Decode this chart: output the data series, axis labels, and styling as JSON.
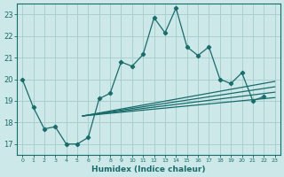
{
  "xlabel": "Humidex (Indice chaleur)",
  "xlim": [
    -0.5,
    23.5
  ],
  "ylim": [
    16.5,
    23.5
  ],
  "yticks": [
    17,
    18,
    19,
    20,
    21,
    22,
    23
  ],
  "xticks": [
    0,
    1,
    2,
    3,
    4,
    5,
    6,
    7,
    8,
    9,
    10,
    11,
    12,
    13,
    14,
    15,
    16,
    17,
    18,
    19,
    20,
    21,
    22,
    23
  ],
  "bg_color": "#cce8e8",
  "grid_color": "#aacfcf",
  "line_color": "#1a6b6b",
  "series": {
    "main": {
      "x": [
        0,
        1,
        2,
        3,
        4,
        5,
        6,
        7,
        8,
        9,
        10,
        11,
        12,
        13,
        14,
        15,
        16,
        17,
        18,
        19,
        20,
        21,
        22
      ],
      "y": [
        20.0,
        18.7,
        17.7,
        17.8,
        17.0,
        17.0,
        17.3,
        19.1,
        19.35,
        20.8,
        20.6,
        21.15,
        22.85,
        22.15,
        23.3,
        21.5,
        21.1,
        21.5,
        20.0,
        19.8,
        20.3,
        19.0,
        19.2
      ]
    },
    "trend1": {
      "x": [
        5.5,
        23
      ],
      "y": [
        18.3,
        19.15
      ]
    },
    "trend2": {
      "x": [
        5.5,
        23
      ],
      "y": [
        18.3,
        19.4
      ]
    },
    "trend3": {
      "x": [
        5.5,
        23
      ],
      "y": [
        18.3,
        19.65
      ]
    },
    "trend4": {
      "x": [
        5.5,
        23
      ],
      "y": [
        18.3,
        19.9
      ]
    }
  }
}
